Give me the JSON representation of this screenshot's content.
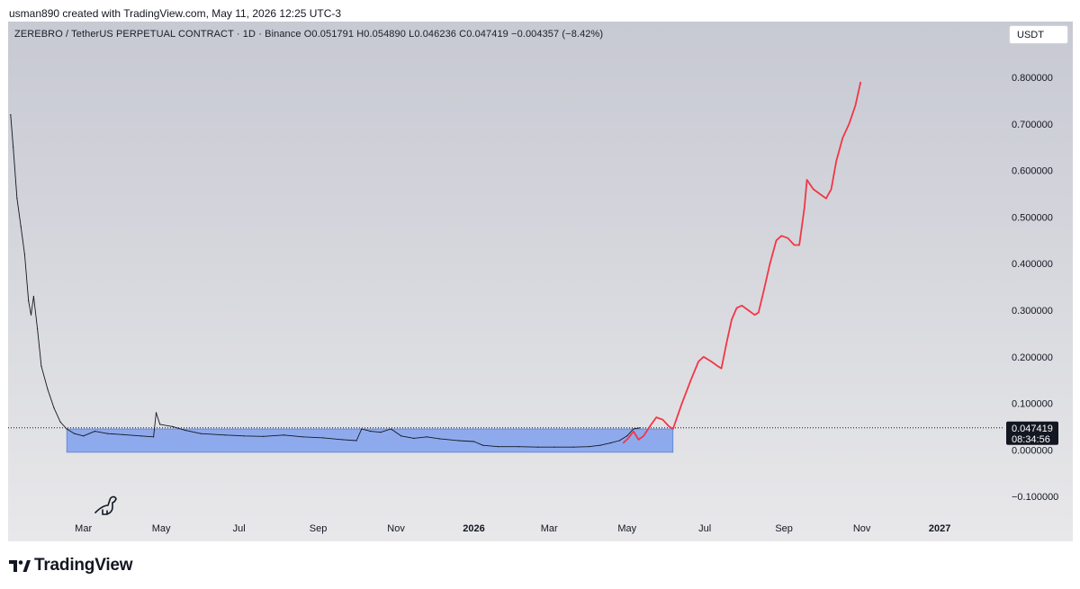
{
  "header": {
    "credit": "usman890 created with TradingView.com, May 11, 2026 12:25 UTC-3"
  },
  "legend": {
    "text": "ZEREBRO / TetherUS PERPETUAL CONTRACT · 1D · Binance  O0.051791  H0.054890  L0.046236  C0.047419  −0.004357 (−8.42%)"
  },
  "currency_button": {
    "label": "USDT"
  },
  "price_tag": {
    "price": "0.047419",
    "countdown": "08:34:56",
    "value": 0.047419
  },
  "brand": {
    "name": "TradingView",
    "icon": "tradingview-logo-icon"
  },
  "colors": {
    "candles": "#131722",
    "zone_fill": "#7fa0ee",
    "projection": "#f23645",
    "price_tag_bg": "#131722"
  },
  "chart_data": {
    "type": "line",
    "y_axis": {
      "ticks": [
        0.8,
        0.7,
        0.6,
        0.5,
        0.4,
        0.3,
        0.2,
        0.1,
        0.0,
        -0.1
      ],
      "tick_labels": [
        "0.800000",
        "0.700000",
        "0.600000",
        "0.500000",
        "0.400000",
        "0.300000",
        "0.200000",
        "0.100000",
        "0.000000",
        "−0.100000"
      ],
      "range": [
        -0.15,
        0.92
      ],
      "position": "right"
    },
    "x_axis": {
      "range": [
        "2025-01-01",
        "2027-02-20"
      ],
      "ticks": [
        {
          "label": "Mar",
          "date": "2025-03-01",
          "bold": false
        },
        {
          "label": "May",
          "date": "2025-05-01",
          "bold": false
        },
        {
          "label": "Jul",
          "date": "2025-07-01",
          "bold": false
        },
        {
          "label": "Sep",
          "date": "2025-09-01",
          "bold": false
        },
        {
          "label": "Nov",
          "date": "2025-11-01",
          "bold": false
        },
        {
          "label": "2026",
          "date": "2026-01-01",
          "bold": true
        },
        {
          "label": "Mar",
          "date": "2026-03-01",
          "bold": false
        },
        {
          "label": "May",
          "date": "2026-05-01",
          "bold": false
        },
        {
          "label": "Jul",
          "date": "2026-07-01",
          "bold": false
        },
        {
          "label": "Sep",
          "date": "2026-09-01",
          "bold": false
        },
        {
          "label": "Nov",
          "date": "2026-11-01",
          "bold": false
        },
        {
          "label": "2027",
          "date": "2027-01-01",
          "bold": true
        }
      ]
    },
    "grid": false,
    "series": [
      {
        "style": "price",
        "points": [
          [
            "2025-01-03",
            0.72
          ],
          [
            "2025-01-05",
            0.65
          ],
          [
            "2025-01-08",
            0.54
          ],
          [
            "2025-01-11",
            0.48
          ],
          [
            "2025-01-14",
            0.42
          ],
          [
            "2025-01-17",
            0.32
          ],
          [
            "2025-01-19",
            0.29
          ],
          [
            "2025-01-21",
            0.33
          ],
          [
            "2025-01-24",
            0.26
          ],
          [
            "2025-01-27",
            0.18
          ],
          [
            "2025-02-01",
            0.13
          ],
          [
            "2025-02-06",
            0.09
          ],
          [
            "2025-02-11",
            0.06
          ],
          [
            "2025-02-16",
            0.045
          ],
          [
            "2025-02-22",
            0.035
          ],
          [
            "2025-03-01",
            0.03
          ],
          [
            "2025-03-10",
            0.04
          ],
          [
            "2025-03-20",
            0.035
          ],
          [
            "2025-04-01",
            0.033
          ],
          [
            "2025-04-15",
            0.03
          ],
          [
            "2025-04-25",
            0.028
          ],
          [
            "2025-04-27",
            0.08
          ],
          [
            "2025-04-30",
            0.055
          ],
          [
            "2025-05-10",
            0.05
          ],
          [
            "2025-05-20",
            0.042
          ],
          [
            "2025-06-01",
            0.035
          ],
          [
            "2025-06-20",
            0.032
          ],
          [
            "2025-07-05",
            0.03
          ],
          [
            "2025-07-20",
            0.029
          ],
          [
            "2025-08-05",
            0.032
          ],
          [
            "2025-08-20",
            0.028
          ],
          [
            "2025-09-05",
            0.026
          ],
          [
            "2025-09-20",
            0.022
          ],
          [
            "2025-10-01",
            0.02
          ],
          [
            "2025-10-05",
            0.045
          ],
          [
            "2025-10-12",
            0.04
          ],
          [
            "2025-10-20",
            0.038
          ],
          [
            "2025-10-28",
            0.045
          ],
          [
            "2025-11-05",
            0.03
          ],
          [
            "2025-11-15",
            0.025
          ],
          [
            "2025-11-25",
            0.028
          ],
          [
            "2025-12-05",
            0.024
          ],
          [
            "2025-12-20",
            0.02
          ],
          [
            "2026-01-01",
            0.018
          ],
          [
            "2026-01-08",
            0.01
          ],
          [
            "2026-01-20",
            0.007
          ],
          [
            "2026-02-05",
            0.007
          ],
          [
            "2026-02-20",
            0.006
          ],
          [
            "2026-03-05",
            0.006
          ],
          [
            "2026-03-20",
            0.006
          ],
          [
            "2026-04-01",
            0.007
          ],
          [
            "2026-04-10",
            0.01
          ],
          [
            "2026-04-18",
            0.015
          ],
          [
            "2026-04-25",
            0.02
          ],
          [
            "2026-05-01",
            0.03
          ],
          [
            "2026-05-06",
            0.045
          ],
          [
            "2026-05-11",
            0.047419
          ]
        ]
      },
      {
        "style": "projection",
        "points": [
          [
            "2026-04-28",
            0.015
          ],
          [
            "2026-05-02",
            0.025
          ],
          [
            "2026-05-06",
            0.04
          ],
          [
            "2026-05-10",
            0.022
          ],
          [
            "2026-05-14",
            0.03
          ],
          [
            "2026-05-20",
            0.055
          ],
          [
            "2026-05-24",
            0.07
          ],
          [
            "2026-05-29",
            0.065
          ],
          [
            "2026-06-03",
            0.05
          ],
          [
            "2026-06-06",
            0.045
          ],
          [
            "2026-06-13",
            0.1
          ],
          [
            "2026-06-20",
            0.15
          ],
          [
            "2026-06-26",
            0.19
          ],
          [
            "2026-06-30",
            0.2
          ],
          [
            "2026-07-06",
            0.19
          ],
          [
            "2026-07-11",
            0.18
          ],
          [
            "2026-07-14",
            0.175
          ],
          [
            "2026-07-18",
            0.23
          ],
          [
            "2026-07-22",
            0.28
          ],
          [
            "2026-07-26",
            0.305
          ],
          [
            "2026-07-30",
            0.31
          ],
          [
            "2026-08-04",
            0.3
          ],
          [
            "2026-08-09",
            0.29
          ],
          [
            "2026-08-12",
            0.295
          ],
          [
            "2026-08-16",
            0.34
          ],
          [
            "2026-08-21",
            0.4
          ],
          [
            "2026-08-26",
            0.45
          ],
          [
            "2026-08-30",
            0.46
          ],
          [
            "2026-09-04",
            0.455
          ],
          [
            "2026-09-09",
            0.44
          ],
          [
            "2026-09-13",
            0.44
          ],
          [
            "2026-09-17",
            0.52
          ],
          [
            "2026-09-19",
            0.58
          ],
          [
            "2026-09-24",
            0.56
          ],
          [
            "2026-09-29",
            0.55
          ],
          [
            "2026-10-04",
            0.54
          ],
          [
            "2026-10-08",
            0.56
          ],
          [
            "2026-10-12",
            0.62
          ],
          [
            "2026-10-17",
            0.67
          ],
          [
            "2026-10-22",
            0.7
          ],
          [
            "2026-10-27",
            0.74
          ],
          [
            "2026-10-31",
            0.79
          ]
        ]
      }
    ],
    "zone": {
      "x": [
        "2025-02-16",
        "2026-06-06"
      ],
      "y": [
        -0.005,
        0.045
      ]
    }
  }
}
